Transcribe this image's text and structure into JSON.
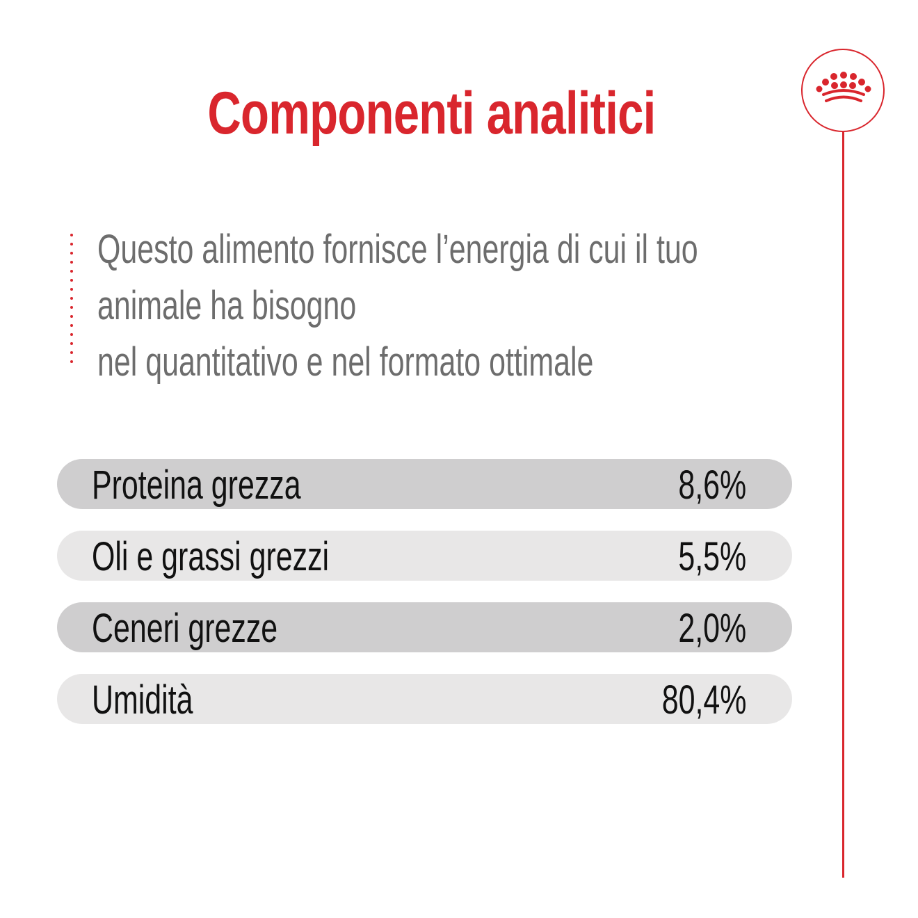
{
  "title": "Componenti analitici",
  "description": {
    "lines": [
      "Questo alimento fornisce l’energia di cui il tuo",
      "animale ha bisogno",
      "nel quantitativo e nel formato ottimale"
    ]
  },
  "analytics": [
    {
      "label": "Proteina grezza",
      "value": "8,6%"
    },
    {
      "label": "Oli e grassi grezzi",
      "value": "5,5%"
    },
    {
      "label": "Ceneri grezze",
      "value": "2,0%"
    },
    {
      "label": "Umidità",
      "value": "80,4%"
    }
  ],
  "logo": {
    "icon": "crown-icon"
  },
  "colors": {
    "accent": "#d9262d",
    "row_dark": "#cfcecf",
    "row_light": "#e8e7e7",
    "description_text": "#6d6d6d",
    "row_text": "#111111"
  }
}
